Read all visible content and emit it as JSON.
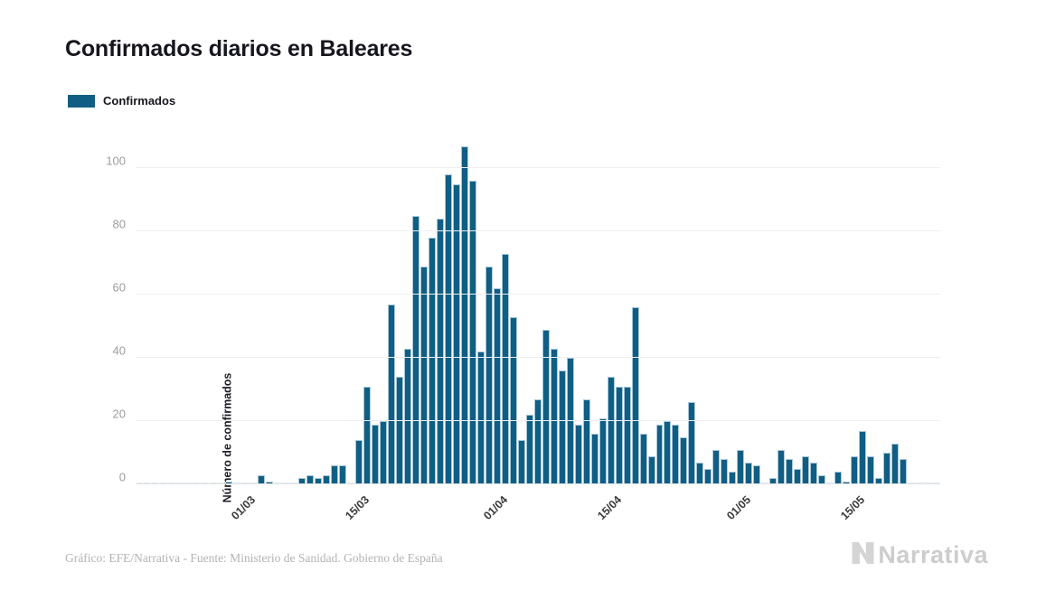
{
  "title": "Confirmados diarios en Baleares",
  "legend": {
    "label": "Confirmados",
    "color": "#115E84"
  },
  "y_axis": {
    "title": "Número de confirmados",
    "ticks": [
      0,
      20,
      40,
      60,
      80,
      100
    ]
  },
  "x_axis": {
    "tick_labels": [
      "01/03",
      "15/03",
      "01/04",
      "15/04",
      "01/05",
      "15/05"
    ]
  },
  "footer": {
    "source": "Gráfico: EFE/Narrativa - Fuente: Ministerio de Sanidad. Gobierno de España"
  },
  "logo": {
    "text": "Narrativa"
  },
  "colors": {
    "bar": "#115E84",
    "zero_bar": "#dde8ef",
    "gridline": "#efefef",
    "title_text": "#16161e",
    "tick_text": "#9c9c9c",
    "footer_text": "#b3b3b3"
  },
  "chart_data": {
    "type": "bar",
    "title": "Confirmados diarios en Baleares",
    "series_name": "Confirmados",
    "xlabel": "",
    "ylabel": "Número de confirmados",
    "ylim": [
      0,
      112
    ],
    "grid": true,
    "legend_position": "top-left",
    "dates": [
      "17/02",
      "18/02",
      "19/02",
      "20/02",
      "21/02",
      "22/02",
      "23/02",
      "24/02",
      "25/02",
      "26/02",
      "27/02",
      "28/02",
      "29/02",
      "01/03",
      "02/03",
      "03/03",
      "04/03",
      "05/03",
      "06/03",
      "07/03",
      "08/03",
      "09/03",
      "10/03",
      "11/03",
      "12/03",
      "13/03",
      "14/03",
      "15/03",
      "16/03",
      "17/03",
      "18/03",
      "19/03",
      "20/03",
      "21/03",
      "22/03",
      "23/03",
      "24/03",
      "25/03",
      "26/03",
      "27/03",
      "28/03",
      "29/03",
      "30/03",
      "31/03",
      "01/04",
      "02/04",
      "03/04",
      "04/04",
      "05/04",
      "06/04",
      "07/04",
      "08/04",
      "09/04",
      "10/04",
      "11/04",
      "12/04",
      "13/04",
      "14/04",
      "15/04",
      "16/04",
      "17/04",
      "18/04",
      "19/04",
      "20/04",
      "21/04",
      "22/04",
      "23/04",
      "24/04",
      "25/04",
      "26/04",
      "27/04",
      "28/04",
      "29/04",
      "30/04",
      "01/05",
      "02/05",
      "03/05",
      "04/05",
      "05/05",
      "06/05",
      "07/05",
      "08/05",
      "09/05",
      "10/05",
      "11/05",
      "12/05",
      "13/05",
      "14/05",
      "15/05",
      "16/05",
      "17/05",
      "18/05",
      "19/05",
      "20/05",
      "21/05",
      "22/05",
      "23/05",
      "24/05",
      "25/05"
    ],
    "values": [
      0,
      0,
      0,
      0,
      0,
      0,
      0,
      0,
      0,
      0,
      0,
      1,
      0,
      0,
      0,
      3,
      1,
      0,
      0,
      0,
      2,
      3,
      2,
      3,
      6,
      6,
      0,
      14,
      31,
      19,
      20,
      57,
      34,
      43,
      85,
      69,
      78,
      84,
      98,
      95,
      107,
      96,
      42,
      69,
      62,
      73,
      53,
      14,
      22,
      27,
      49,
      43,
      36,
      40,
      19,
      27,
      16,
      21,
      34,
      31,
      31,
      56,
      16,
      9,
      19,
      20,
      19,
      15,
      26,
      7,
      5,
      11,
      8,
      4,
      11,
      7,
      6,
      0,
      2,
      11,
      8,
      5,
      9,
      7,
      3,
      0,
      4,
      1,
      9,
      17,
      9,
      2,
      10,
      13,
      8,
      0,
      0,
      0,
      0
    ]
  }
}
